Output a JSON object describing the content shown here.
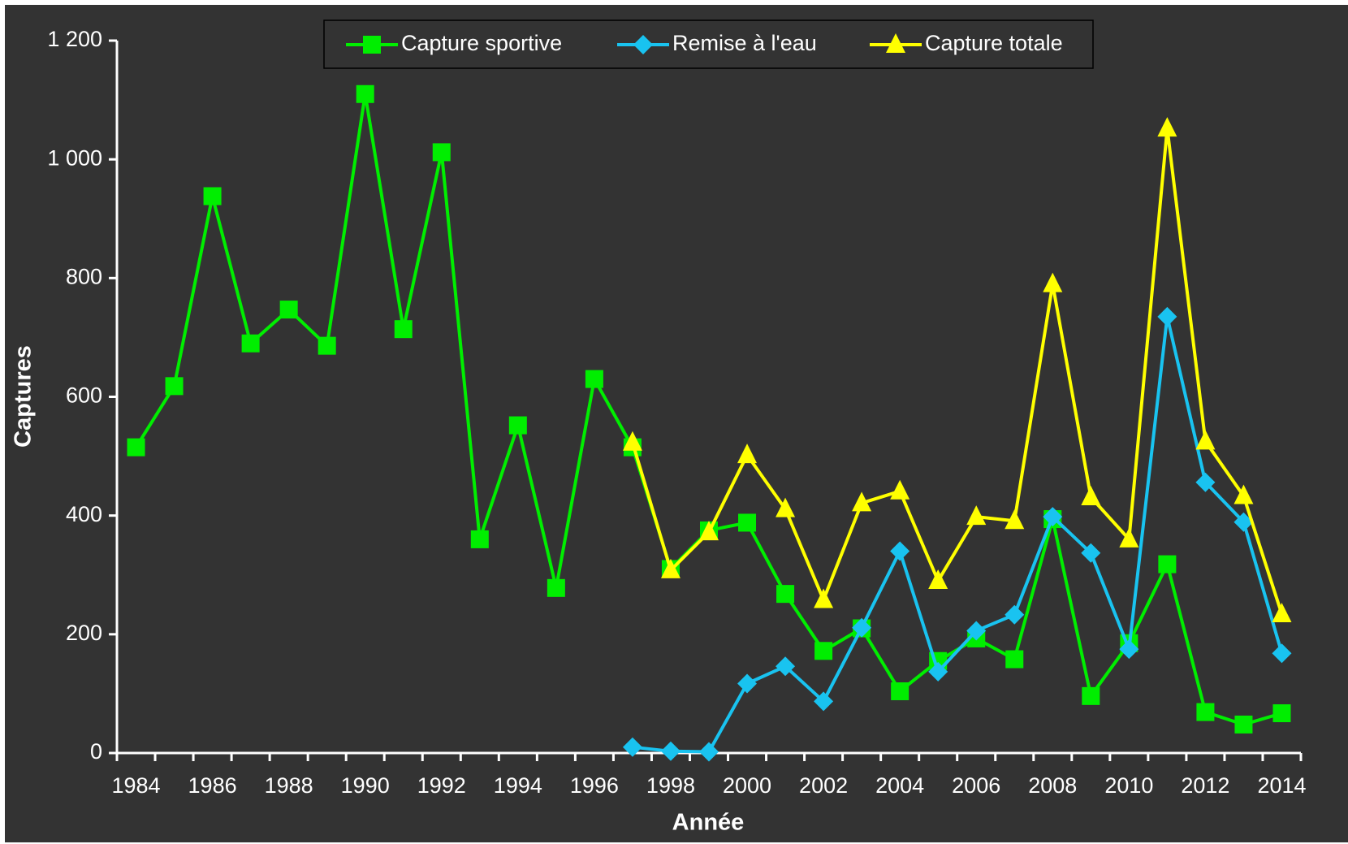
{
  "chart_data": {
    "type": "line",
    "x_label": "Année",
    "y_label": "Captures",
    "categories": [
      "1984",
      null,
      "1986",
      null,
      "1988",
      null,
      "1990",
      null,
      "1992",
      null,
      "1994",
      null,
      "1996",
      null,
      "1998",
      null,
      "2000",
      null,
      "2002",
      null,
      "2004",
      null,
      "2006",
      null,
      "2008",
      null,
      "2010",
      null,
      "2012",
      null,
      "2014"
    ],
    "series": [
      {
        "name": "Capture sportive",
        "color": "#00ee00",
        "marker": "square",
        "values": [
          515,
          618,
          938,
          690,
          747,
          686,
          1110,
          714,
          1012,
          360,
          552,
          278,
          630,
          515,
          310,
          375,
          388,
          268,
          172,
          210,
          104,
          155,
          193,
          158,
          394,
          96,
          185,
          318,
          69,
          48,
          67
        ]
      },
      {
        "name": "Remise à l'eau",
        "color": "#19c3f0",
        "marker": "diamond",
        "values": [
          null,
          null,
          null,
          null,
          null,
          null,
          null,
          null,
          null,
          null,
          null,
          null,
          null,
          10,
          3,
          2,
          117,
          146,
          87,
          211,
          340,
          137,
          206,
          233,
          398,
          337,
          175,
          735,
          456,
          389,
          168
        ]
      },
      {
        "name": "Capture totale",
        "color": "#ffff00",
        "marker": "triangle",
        "values": [
          null,
          null,
          null,
          null,
          null,
          null,
          null,
          null,
          null,
          null,
          null,
          null,
          null,
          523,
          308,
          372,
          502,
          411,
          258,
          421,
          441,
          290,
          398,
          391,
          790,
          431,
          360,
          1052,
          525,
          433,
          234
        ]
      }
    ],
    "ylim": [
      0,
      1200
    ],
    "yticks": [
      0,
      200,
      400,
      600,
      800,
      {
        "value": 1000,
        "label": "1 000"
      },
      {
        "value": 1200,
        "label": "1 200"
      }
    ],
    "legend": "top"
  }
}
